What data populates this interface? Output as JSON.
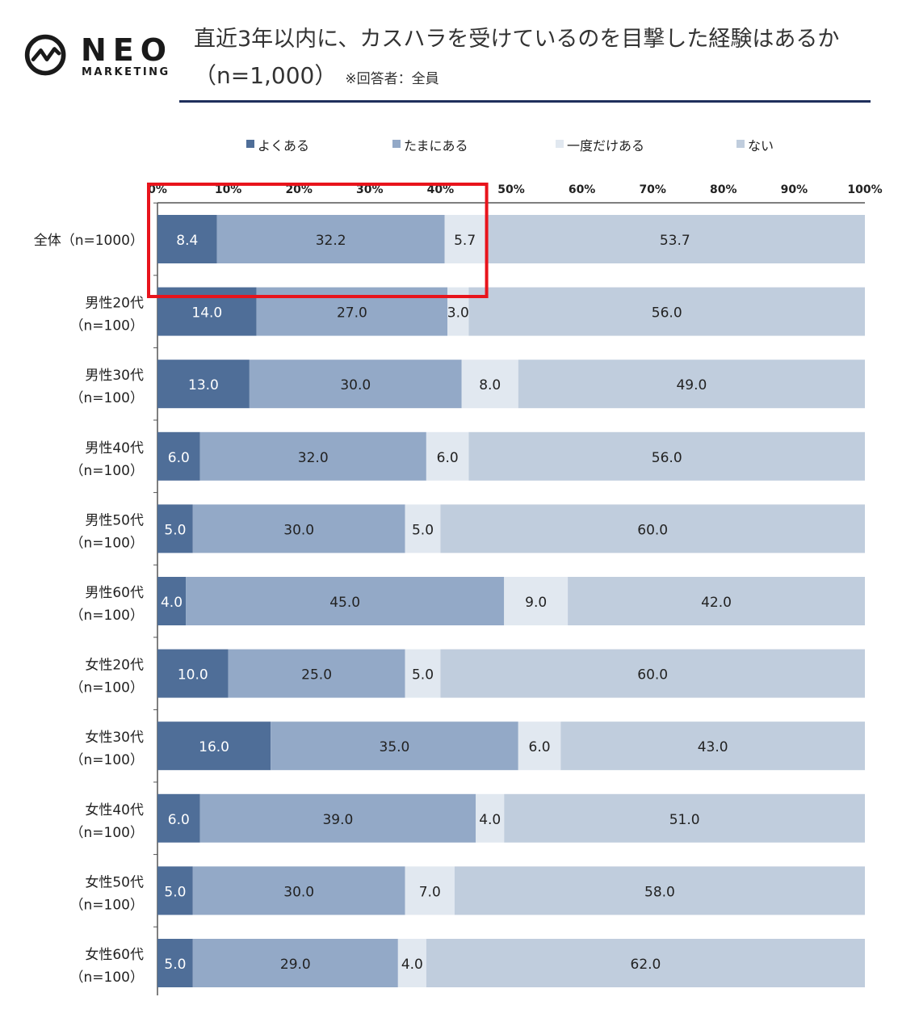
{
  "brand": {
    "name": "NEO",
    "sub": "MARKETING",
    "logo_icon": "pulse-circle-icon"
  },
  "header": {
    "title": "直近3年以内に、カスハラを受けているのを目撃した経験はあるか",
    "sample": "（n=1,000）",
    "note": "※回答者：全員"
  },
  "chart_data": {
    "type": "bar",
    "orientation": "horizontal-stacked-100",
    "x_ticks": [
      "0%",
      "10%",
      "20%",
      "30%",
      "40%",
      "50%",
      "60%",
      "70%",
      "80%",
      "90%",
      "100%"
    ],
    "xlim": [
      0,
      100
    ],
    "legend_position": "top",
    "highlight_category_index": 0,
    "categories": [
      "全体（n=1000）",
      "男性20代\n（n=100）",
      "男性30代\n（n=100）",
      "男性40代\n（n=100）",
      "男性50代\n（n=100）",
      "男性60代\n（n=100）",
      "女性20代\n（n=100）",
      "女性30代\n（n=100）",
      "女性40代\n（n=100）",
      "女性50代\n（n=100）",
      "女性60代\n（n=100）"
    ],
    "series": [
      {
        "name": "よくある",
        "color": "#4f6e98",
        "label_color": "#ffffff",
        "values": [
          8.4,
          14.0,
          13.0,
          6.0,
          5.0,
          4.0,
          10.0,
          16.0,
          6.0,
          5.0,
          5.0
        ]
      },
      {
        "name": "たまにある",
        "color": "#93a9c7",
        "label_color": "#222222",
        "values": [
          32.2,
          27.0,
          30.0,
          32.0,
          30.0,
          45.0,
          25.0,
          35.0,
          39.0,
          30.0,
          29.0
        ]
      },
      {
        "name": "一度だけある",
        "color": "#e1e8f0",
        "label_color": "#222222",
        "values": [
          5.7,
          3.0,
          8.0,
          6.0,
          5.0,
          9.0,
          5.0,
          6.0,
          4.0,
          7.0,
          4.0
        ]
      },
      {
        "name": "ない",
        "color": "#c0cddd",
        "label_color": "#222222",
        "values": [
          53.7,
          56.0,
          49.0,
          56.0,
          60.0,
          42.0,
          60.0,
          43.0,
          51.0,
          58.0,
          62.0
        ]
      }
    ],
    "highlight_color": "#e8141c"
  }
}
